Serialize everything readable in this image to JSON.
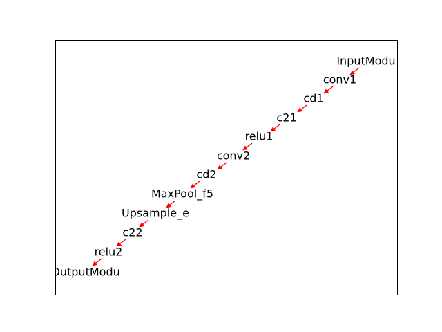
{
  "diagram": {
    "colors": {
      "edge": "#ff0000",
      "frame": "#000000",
      "text": "#000000",
      "background": "#ffffff"
    },
    "nodes": [
      {
        "id": "n0",
        "label": "InputModu"
      },
      {
        "id": "n1",
        "label": "conv1"
      },
      {
        "id": "n2",
        "label": "cd1"
      },
      {
        "id": "n3",
        "label": "c21"
      },
      {
        "id": "n4",
        "label": "relu1"
      },
      {
        "id": "n5",
        "label": "conv2"
      },
      {
        "id": "n6",
        "label": "cd2"
      },
      {
        "id": "n7",
        "label": "MaxPool_f5"
      },
      {
        "id": "n8",
        "label": "Upsample_e"
      },
      {
        "id": "n9",
        "label": "c22"
      },
      {
        "id": "n10",
        "label": "relu2"
      },
      {
        "id": "n11",
        "label": "OutputModu"
      }
    ],
    "edges": [
      {
        "from": "n0",
        "to": "n1"
      },
      {
        "from": "n1",
        "to": "n2"
      },
      {
        "from": "n2",
        "to": "n3"
      },
      {
        "from": "n3",
        "to": "n4"
      },
      {
        "from": "n4",
        "to": "n5"
      },
      {
        "from": "n5",
        "to": "n6"
      },
      {
        "from": "n6",
        "to": "n7"
      },
      {
        "from": "n7",
        "to": "n8"
      },
      {
        "from": "n8",
        "to": "n9"
      },
      {
        "from": "n9",
        "to": "n10"
      },
      {
        "from": "n10",
        "to": "n11"
      }
    ]
  }
}
